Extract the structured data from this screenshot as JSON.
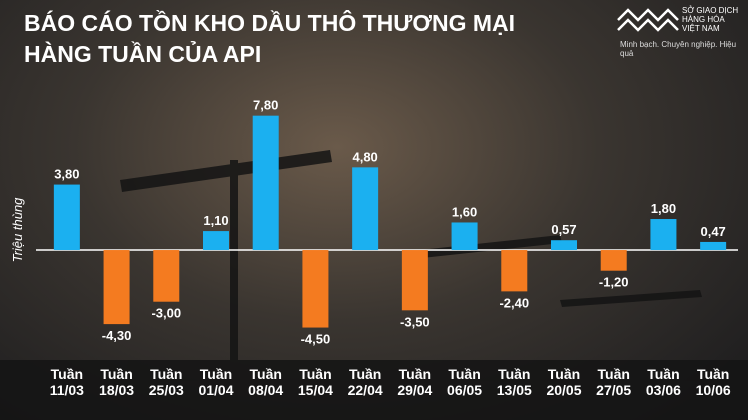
{
  "chart_data": {
    "type": "bar",
    "title": "BÁO CÁO TỒN KHO DẦU THÔ THƯƠNG MẠI\nHÀNG TUẦN CỦA API",
    "y_label": "Triệu thùng",
    "categories": [
      "Tuần\n11/03",
      "Tuần\n18/03",
      "Tuần\n25/03",
      "Tuần\n01/04",
      "Tuần\n08/04",
      "Tuần\n15/04",
      "Tuần\n22/04",
      "Tuần\n29/04",
      "Tuần\n06/05",
      "Tuần\n13/05",
      "Tuần\n20/05",
      "Tuần\n27/05",
      "Tuần\n03/06",
      "Tuần\n10/06"
    ],
    "values": [
      3.8,
      -4.3,
      -3.0,
      1.1,
      7.8,
      -4.5,
      4.8,
      -3.5,
      1.6,
      -2.4,
      0.57,
      -1.2,
      1.8,
      0.47
    ],
    "value_labels": [
      "3,80",
      "-4,30",
      "-3,00",
      "1,10",
      "7,80",
      "-4,50",
      "4,80",
      "-3,50",
      "1,60",
      "-2,40",
      "0,57",
      "-1,20",
      "1,80",
      "0,47"
    ],
    "positive_color": "#1bb0f0",
    "negative_color": "#f47b20",
    "ylim": [
      -6.5,
      9
    ]
  },
  "logo": {
    "name": "SỞ GIAO DỊCH\nHÀNG HÓA\nVIỆT NAM",
    "slogan": "Minh bạch. Chuyên nghiệp. Hiệu quả"
  }
}
